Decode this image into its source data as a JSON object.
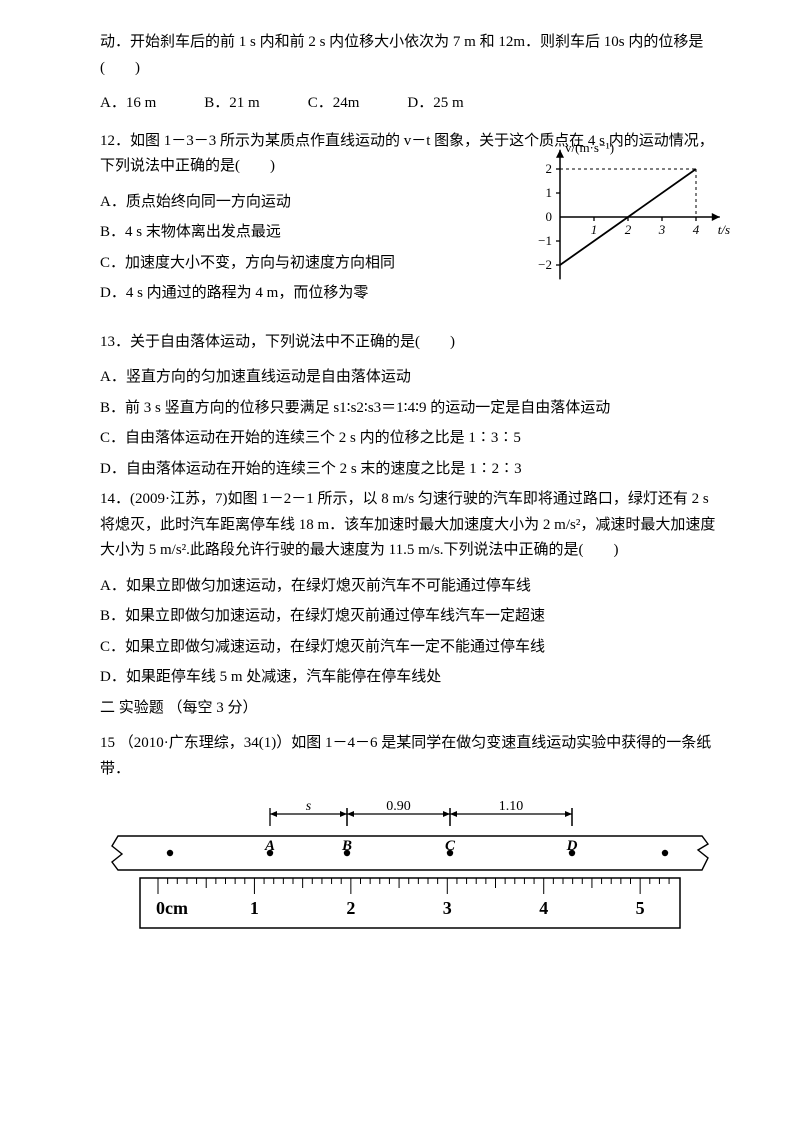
{
  "q11": {
    "pretext": "动．开始刹车后的前 1 s 内和前 2 s 内位移大小依次为 7 m 和 12m．则刹车后 10s 内的位移是(　　)",
    "opts": {
      "a": "A．16 m",
      "b": "B．21 m",
      "c": "C．24m",
      "d": "D．25 m"
    }
  },
  "q12": {
    "stem": "12．如图 1－3－3 所示为某质点作直线运动的 v－t 图象，关于这个质点在 4 s 内的运动情况，下列说法中正确的是(　　)",
    "a": "A．质点始终向同一方向运动",
    "b": "B．4 s 末物体离出发点最远",
    "c": "C．加速度大小不变，方向与初速度方向相同",
    "d": "D．4 s 内通过的路程为 4 m，而位移为零",
    "chart": {
      "ylabel": "v/(m·s⁻¹)",
      "xlabel": "t/s",
      "yticks": [
        -2,
        -1,
        0,
        1,
        2
      ],
      "xticks": [
        1,
        2,
        3,
        4
      ],
      "line": {
        "x1": 0,
        "y1": -2,
        "x2": 4,
        "y2": 2
      },
      "axis_color": "#000000",
      "line_color": "#000000"
    }
  },
  "q13": {
    "stem": "13．关于自由落体运动，下列说法中不正确的是(　　)",
    "a": "A．竖直方向的匀加速直线运动是自由落体运动",
    "b": "B．前 3 s 竖直方向的位移只要满足 s1∶s2∶s3＝1∶4∶9 的运动一定是自由落体运动",
    "c": "C．自由落体运动在开始的连续三个 2 s 内的位移之比是 1∶3∶5",
    "d": "D．自由落体运动在开始的连续三个 2 s 末的速度之比是 1∶2∶3"
  },
  "q14": {
    "stem": "14．(2009·江苏，7)如图 1－2－1 所示，以 8 m/s 匀速行驶的汽车即将通过路口，绿灯还有 2 s 将熄灭，此时汽车距离停车线 18 m．该车加速时最大加速度大小为 2 m/s²，减速时最大加速度大小为 5 m/s².此路段允许行驶的最大速度为 11.5 m/s.下列说法中正确的是(　　)",
    "a": "A．如果立即做匀加速运动，在绿灯熄灭前汽车不可能通过停车线",
    "b": "B．如果立即做匀加速运动，在绿灯熄灭前通过停车线汽车一定超速",
    "c": "C．如果立即做匀减速运动，在绿灯熄灭前汽车一定不能通过停车线",
    "d": "D．如果距停车线 5 m 处减速，汽车能停在停车线处"
  },
  "section2": "二 实验题 （每空 3 分）",
  "q15": {
    "stem": "15 （2010·广东理综，34(1)）如图 1－4－6 是某同学在做匀变速直线运动实验中获得的一条纸带．",
    "tape": {
      "seg_s": "s",
      "seg_m": "0.90",
      "seg_r": "1.10",
      "points": [
        "A",
        "B",
        "C",
        "D"
      ],
      "ruler_unit": "0cm",
      "ruler_ticks": [
        "1",
        "2",
        "3",
        "4",
        "5"
      ]
    }
  }
}
